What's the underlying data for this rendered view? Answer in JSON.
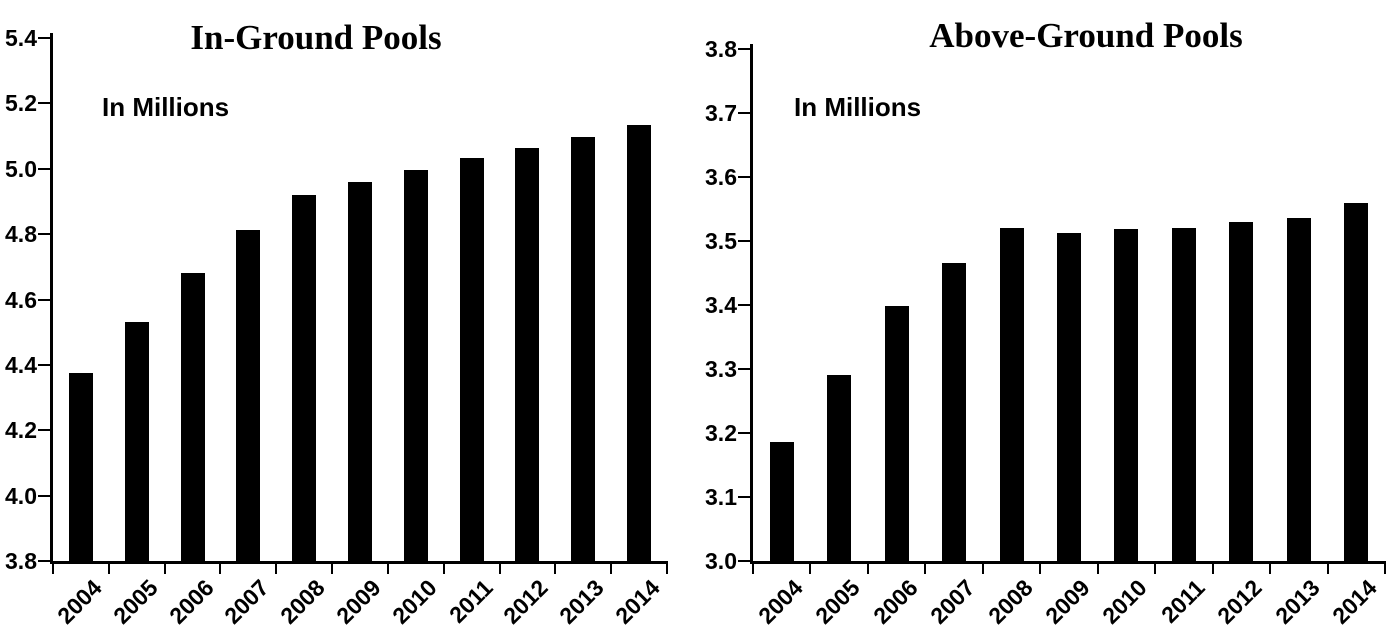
{
  "figure": {
    "background_color": "#ffffff",
    "text_color": "#000000"
  },
  "chart_data": [
    {
      "type": "bar",
      "title": "In-Ground Pools",
      "units_label": "In Millions",
      "xlabel": "",
      "ylabel": "",
      "categories": [
        "2004",
        "2005",
        "2006",
        "2007",
        "2008",
        "2009",
        "2010",
        "2011",
        "2012",
        "2013",
        "2014"
      ],
      "values": [
        4.376,
        4.531,
        4.681,
        4.813,
        4.921,
        4.958,
        4.995,
        5.033,
        5.064,
        5.096,
        5.135
      ],
      "ylim": [
        3.8,
        5.4
      ],
      "yticks": [
        5.4,
        5.2,
        5.0,
        4.8,
        4.6,
        4.4,
        4.2,
        4.0,
        3.8
      ],
      "bar_color": "#000000",
      "grid": false,
      "legend": "none",
      "x_tick_label_rotation_deg": 45
    },
    {
      "type": "bar",
      "title": "Above-Ground Pools",
      "units_label": "In Millions",
      "xlabel": "",
      "ylabel": "",
      "categories": [
        "2004",
        "2005",
        "2006",
        "2007",
        "2008",
        "2009",
        "2010",
        "2011",
        "2012",
        "2013",
        "2014"
      ],
      "values": [
        3.186,
        3.29,
        3.398,
        3.466,
        3.521,
        3.512,
        3.518,
        3.521,
        3.529,
        3.536,
        3.56
      ],
      "ylim": [
        3.0,
        3.8
      ],
      "yticks": [
        3.8,
        3.7,
        3.6,
        3.5,
        3.4,
        3.3,
        3.2,
        3.1,
        3.0
      ],
      "bar_color": "#000000",
      "grid": false,
      "legend": "none",
      "x_tick_label_rotation_deg": 45
    }
  ]
}
